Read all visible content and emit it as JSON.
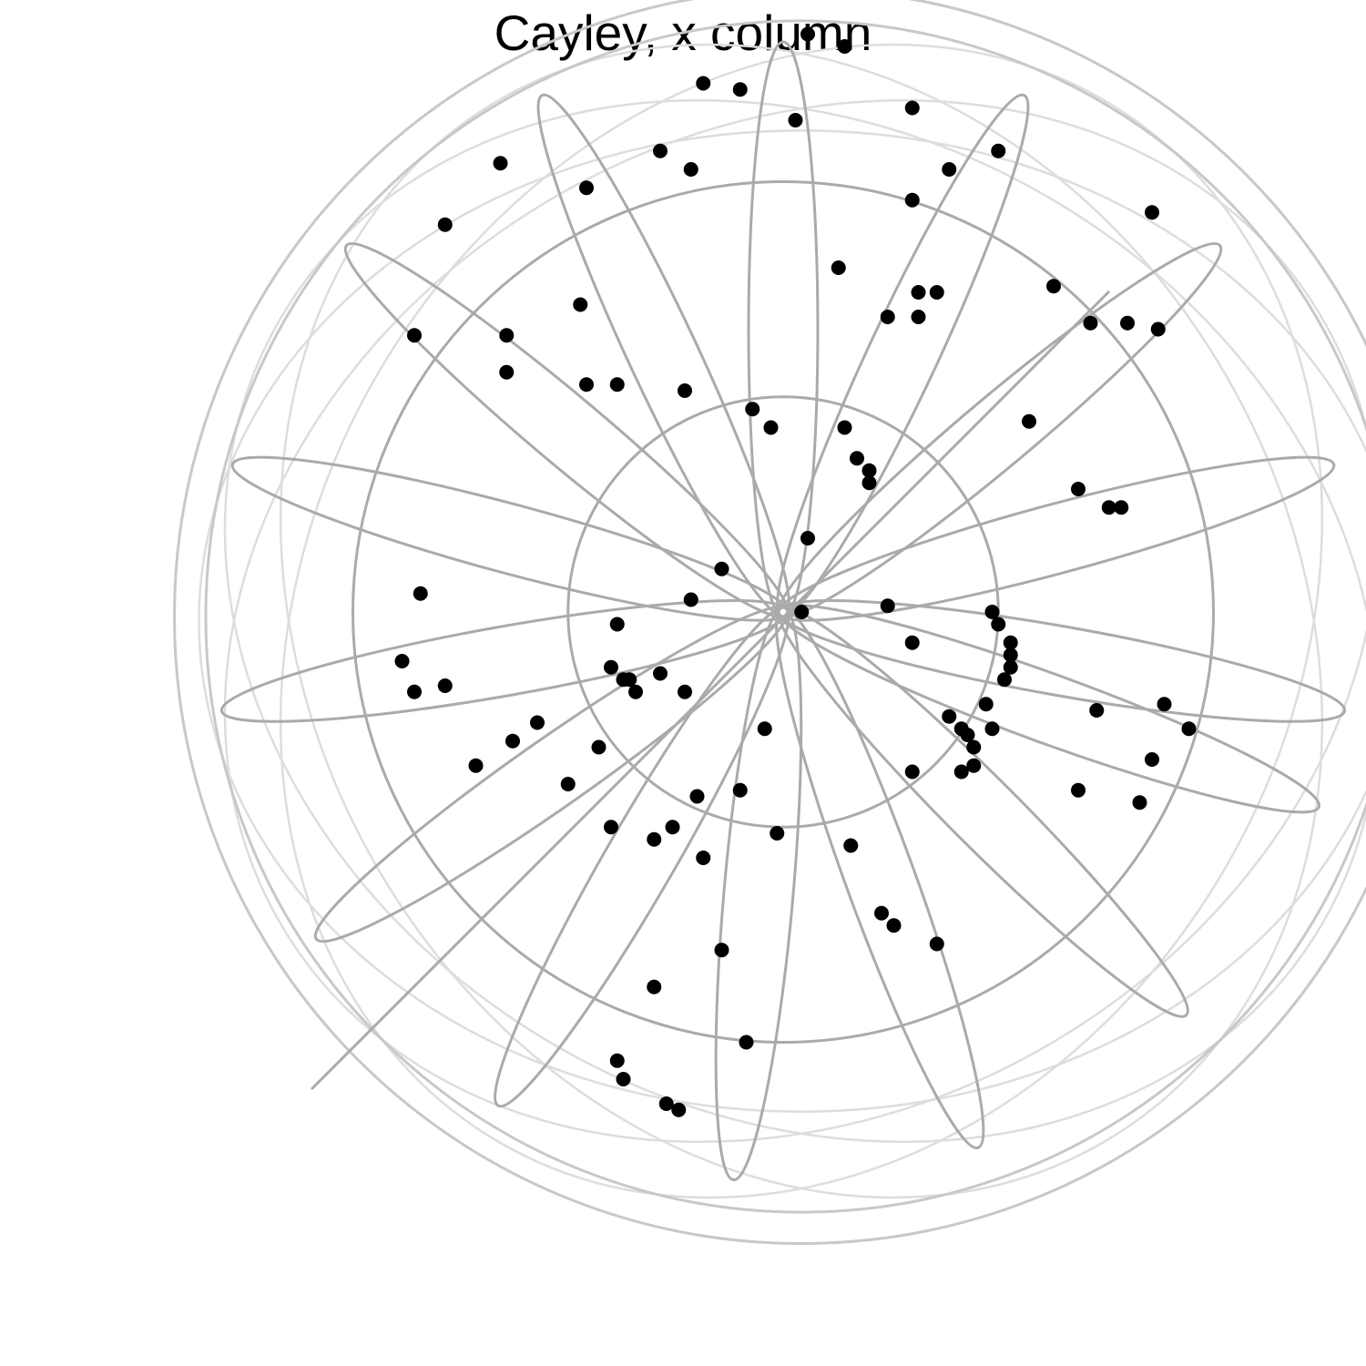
{
  "chart_data": {
    "type": "scatter",
    "title": "Cayley, x column",
    "projection": "polar",
    "grid": true,
    "legend": "none",
    "rings": [
      0.35,
      0.7,
      0.95,
      1.0
    ],
    "spokes_deg": [
      -10,
      15,
      40,
      65,
      90,
      115,
      140,
      165,
      190,
      215,
      240,
      265,
      290,
      315,
      340
    ],
    "colors": {
      "grid": "#aaaaaa",
      "grid_faint": "#dddddd",
      "points": "#000000"
    },
    "points": [
      [
        0.04,
        0.94
      ],
      [
        0.1,
        0.92
      ],
      [
        0.6,
        0.65
      ],
      [
        0.21,
        0.82
      ],
      [
        -0.07,
        0.85
      ],
      [
        -0.13,
        0.86
      ],
      [
        0.02,
        0.8
      ],
      [
        0.35,
        0.75
      ],
      [
        -0.46,
        0.73
      ],
      [
        -0.55,
        0.63
      ],
      [
        -0.2,
        0.75
      ],
      [
        -0.15,
        0.72
      ],
      [
        -0.32,
        0.69
      ],
      [
        0.27,
        0.72
      ],
      [
        0.21,
        0.67
      ],
      [
        -0.45,
        0.45
      ],
      [
        0.09,
        0.56
      ],
      [
        0.22,
        0.52
      ],
      [
        0.25,
        0.52
      ],
      [
        0.17,
        0.48
      ],
      [
        0.22,
        0.48
      ],
      [
        -0.33,
        0.5
      ],
      [
        -0.6,
        0.45
      ],
      [
        -0.45,
        0.39
      ],
      [
        -0.32,
        0.37
      ],
      [
        -0.27,
        0.37
      ],
      [
        -0.16,
        0.36
      ],
      [
        -0.05,
        0.33
      ],
      [
        -0.02,
        0.3
      ],
      [
        0.1,
        0.3
      ],
      [
        0.12,
        0.25
      ],
      [
        0.14,
        0.23
      ],
      [
        0.14,
        0.21
      ],
      [
        0.04,
        0.12
      ],
      [
        -0.1,
        0.07
      ],
      [
        0.03,
        0.0
      ],
      [
        0.17,
        0.01
      ],
      [
        0.44,
        0.53
      ],
      [
        0.5,
        0.47
      ],
      [
        0.56,
        0.47
      ],
      [
        0.61,
        0.46
      ],
      [
        0.48,
        0.2
      ],
      [
        0.53,
        0.17
      ],
      [
        0.55,
        0.17
      ],
      [
        0.4,
        0.31
      ],
      [
        -0.59,
        0.03
      ],
      [
        -0.62,
        -0.08
      ],
      [
        -0.55,
        -0.12
      ],
      [
        -0.6,
        -0.13
      ],
      [
        -0.4,
        -0.18
      ],
      [
        -0.44,
        -0.21
      ],
      [
        -0.5,
        -0.25
      ],
      [
        -0.3,
        -0.22
      ],
      [
        0.21,
        -0.05
      ],
      [
        -0.27,
        -0.02
      ],
      [
        -0.28,
        -0.09
      ],
      [
        -0.26,
        -0.11
      ],
      [
        -0.25,
        -0.11
      ],
      [
        -0.24,
        -0.13
      ],
      [
        0.34,
        0.0
      ],
      [
        0.35,
        -0.02
      ],
      [
        0.37,
        -0.05
      ],
      [
        0.37,
        -0.07
      ],
      [
        0.37,
        -0.09
      ],
      [
        0.36,
        -0.11
      ],
      [
        0.33,
        -0.15
      ],
      [
        0.34,
        -0.19
      ],
      [
        0.51,
        -0.16
      ],
      [
        0.62,
        -0.15
      ],
      [
        0.66,
        -0.19
      ],
      [
        0.6,
        -0.24
      ],
      [
        0.27,
        -0.17
      ],
      [
        0.29,
        -0.19
      ],
      [
        0.3,
        -0.2
      ],
      [
        0.31,
        -0.22
      ],
      [
        0.31,
        -0.25
      ],
      [
        0.21,
        -0.26
      ],
      [
        0.29,
        -0.26
      ],
      [
        -0.03,
        -0.19
      ],
      [
        -0.07,
        -0.29
      ],
      [
        -0.14,
        -0.3
      ],
      [
        -0.35,
        -0.28
      ],
      [
        -0.28,
        -0.35
      ],
      [
        -0.21,
        -0.37
      ],
      [
        -0.18,
        -0.35
      ],
      [
        -0.13,
        -0.4
      ],
      [
        -0.01,
        -0.36
      ],
      [
        0.11,
        -0.38
      ],
      [
        0.48,
        -0.29
      ],
      [
        0.58,
        -0.31
      ],
      [
        0.16,
        -0.49
      ],
      [
        0.18,
        -0.51
      ],
      [
        0.25,
        -0.54
      ],
      [
        -0.1,
        -0.55
      ],
      [
        -0.21,
        -0.61
      ],
      [
        -0.06,
        -0.7
      ],
      [
        -0.27,
        -0.73
      ],
      [
        -0.26,
        -0.76
      ],
      [
        -0.19,
        -0.8
      ],
      [
        -0.17,
        -0.81
      ],
      [
        -0.15,
        0.02
      ],
      [
        -0.16,
        -0.13
      ],
      [
        -0.2,
        -0.1
      ]
    ]
  }
}
